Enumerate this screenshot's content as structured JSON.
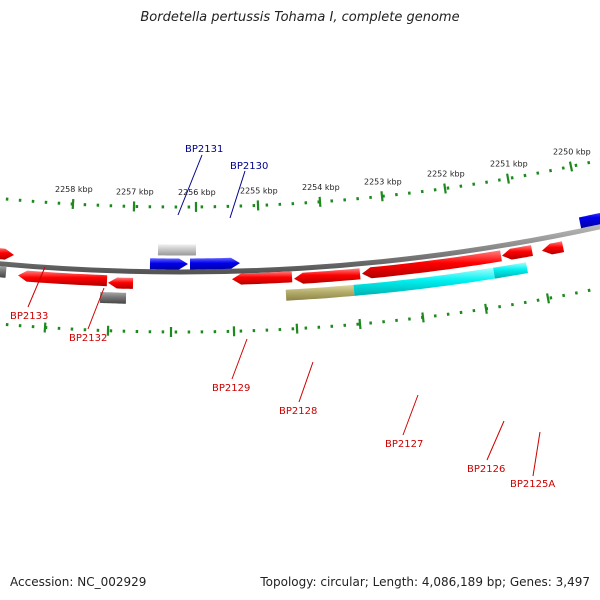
{
  "title": "Bordetella pertussis Tohama I, complete genome",
  "footer": {
    "accession": "Accession: NC_002929",
    "topology": "Topology: circular; Length: 4,086,189 bp; Genes: 3,497"
  },
  "colors": {
    "red": "#ff0000",
    "blue": "#0000ee",
    "cyan": "#00f0f0",
    "olive": "#b5ad6a",
    "gray": "#777777",
    "lightgray": "#c8c8c8",
    "backbone": "#8a8a8a",
    "dots": "#1e8a1e",
    "forward_label": "#00008b",
    "reverse_label": "#cc0000"
  },
  "scale": {
    "unit": "kbp",
    "ticks": [
      {
        "label": "2258 kbp"
      },
      {
        "label": "2257 kbp"
      },
      {
        "label": "2256 kbp"
      },
      {
        "label": "2255 kbp"
      },
      {
        "label": "2254 kbp"
      },
      {
        "label": "2253 kbp"
      },
      {
        "label": "2252 kbp"
      },
      {
        "label": "2251 kbp"
      },
      {
        "label": "2250 kbp"
      }
    ]
  },
  "genes": [
    {
      "label": "BP2131",
      "strand": "forward",
      "color": "lightgray"
    },
    {
      "label": "BP2130",
      "strand": "forward",
      "color": "blue"
    },
    {
      "label": "BP2133",
      "strand": "reverse",
      "color": "red"
    },
    {
      "label": "BP2132",
      "strand": "reverse",
      "color": "gray"
    },
    {
      "label": "BP2129",
      "strand": "reverse",
      "color": "red"
    },
    {
      "label": "BP2128",
      "strand": "reverse",
      "color": "red"
    },
    {
      "label": "BP2127",
      "strand": "reverse",
      "color": "red"
    },
    {
      "label": "BP2126",
      "strand": "reverse",
      "color": "red"
    },
    {
      "label": "BP2125A",
      "strand": "reverse",
      "color": "red"
    }
  ]
}
